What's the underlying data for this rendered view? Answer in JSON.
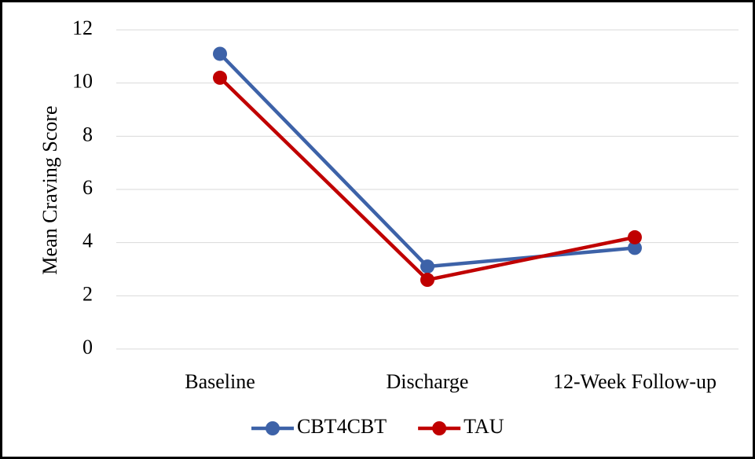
{
  "chart_data": {
    "type": "line",
    "y_label": "Mean Craving Score",
    "categories": [
      "Baseline",
      "Discharge",
      "12-Week Follow-up"
    ],
    "series": [
      {
        "name": "CBT4CBT",
        "color": "#3d62a8",
        "values": [
          11.1,
          3.1,
          3.8
        ]
      },
      {
        "name": "TAU",
        "color": "#c00000",
        "values": [
          10.2,
          2.6,
          4.2
        ]
      }
    ],
    "ylim": [
      0,
      12
    ],
    "yticks": [
      0,
      2,
      4,
      6,
      8,
      10,
      12
    ],
    "grid": true,
    "legend": "bottom"
  }
}
